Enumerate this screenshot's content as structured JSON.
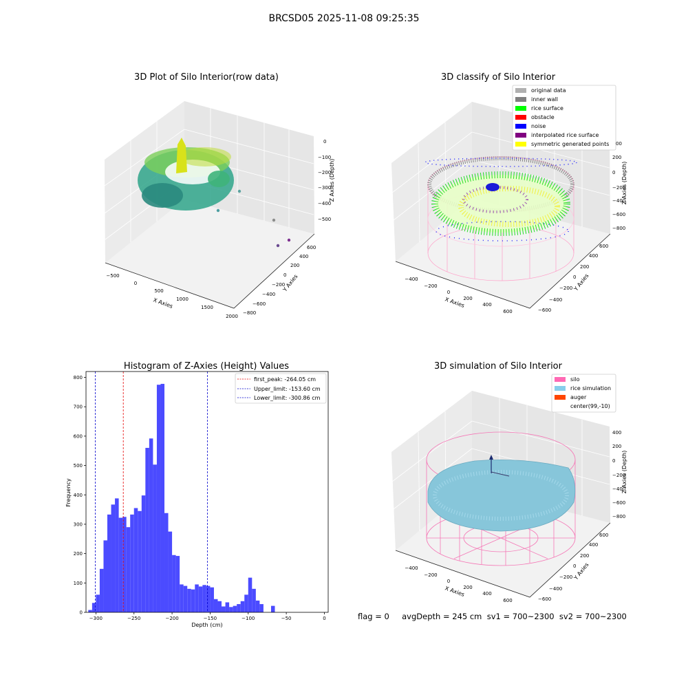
{
  "suptitle": "BRCSD05 2025-11-08 09:25:35",
  "status_line": "flag = 0     avgDepth = 245 cm  sv1 = 700~2300  sv2 = 700~2300",
  "chart_data": [
    {
      "type": "scatter",
      "title": "3D Plot of Silo Interior(row data)",
      "xlabel": "X Axies",
      "ylabel": "Y Axies",
      "zlabel": "Z Axies (Depth)",
      "x_ticks": [
        "−500",
        "0",
        "500",
        "1000",
        "1500",
        "2000"
      ],
      "y_ticks": [
        "−800",
        "−600",
        "−400",
        "−200",
        "0",
        "200",
        "400",
        "600"
      ],
      "z_ticks": [
        "0",
        "−100",
        "−200",
        "−300",
        "−400",
        "−500"
      ],
      "colormap": "viridis",
      "outlier_points": [
        {
          "color": "#5ba3a0"
        },
        {
          "color": "#4e9fa2"
        },
        {
          "color": "#8b8c8b"
        },
        {
          "color": "#6a4a90"
        },
        {
          "color": "#7c2f8f"
        }
      ]
    },
    {
      "type": "scatter",
      "title": "3D classify of Silo Interior",
      "xlabel": "X Axies",
      "ylabel": "Y Axies",
      "zlabel": "Z Axies (Depth)",
      "x_ticks": [
        "−400",
        "−200",
        "0",
        "200",
        "400",
        "600"
      ],
      "y_ticks": [
        "−600",
        "−400",
        "−200",
        "0",
        "200",
        "400",
        "600"
      ],
      "z_ticks": [
        "200",
        "0",
        "−200",
        "−400",
        "−600",
        "−800"
      ],
      "z_top_tick": "00",
      "legend": [
        {
          "label": "original data",
          "color": "#b0b0b0"
        },
        {
          "label": "inner wall",
          "color": "#808080"
        },
        {
          "label": "rice surface",
          "color": "#00ff00"
        },
        {
          "label": "obstacle",
          "color": "#ff0000"
        },
        {
          "label": "noise",
          "color": "#0000ff"
        },
        {
          "label": "interpolated rice surface",
          "color": "#800080"
        },
        {
          "label": "symmetric generated points",
          "color": "#ffff00"
        }
      ]
    },
    {
      "type": "bar",
      "title": "Histogram of Z-Axies (Height) Values",
      "xlabel": "Depth (cm)",
      "ylabel": "Frequency",
      "xlim": [
        -313,
        5
      ],
      "ylim": [
        0,
        820
      ],
      "x_ticks": [
        -300,
        -250,
        -200,
        -150,
        -100,
        -50,
        0
      ],
      "y_ticks": [
        0,
        100,
        200,
        300,
        400,
        500,
        600,
        700,
        800
      ],
      "bar_color": "#4b4bff",
      "bin_width": 5,
      "bins": [
        {
          "x": -310,
          "v": 8
        },
        {
          "x": -305,
          "v": 32
        },
        {
          "x": -300,
          "v": 60
        },
        {
          "x": -295,
          "v": 148
        },
        {
          "x": -290,
          "v": 245
        },
        {
          "x": -285,
          "v": 333
        },
        {
          "x": -280,
          "v": 367
        },
        {
          "x": -275,
          "v": 388
        },
        {
          "x": -270,
          "v": 322
        },
        {
          "x": -265,
          "v": 325
        },
        {
          "x": -260,
          "v": 290
        },
        {
          "x": -255,
          "v": 333
        },
        {
          "x": -250,
          "v": 355
        },
        {
          "x": -245,
          "v": 345
        },
        {
          "x": -240,
          "v": 398
        },
        {
          "x": -235,
          "v": 560
        },
        {
          "x": -230,
          "v": 592
        },
        {
          "x": -225,
          "v": 503
        },
        {
          "x": -220,
          "v": 775
        },
        {
          "x": -215,
          "v": 778
        },
        {
          "x": -210,
          "v": 338
        },
        {
          "x": -205,
          "v": 275
        },
        {
          "x": -200,
          "v": 195
        },
        {
          "x": -195,
          "v": 192
        },
        {
          "x": -190,
          "v": 95
        },
        {
          "x": -185,
          "v": 90
        },
        {
          "x": -180,
          "v": 80
        },
        {
          "x": -175,
          "v": 78
        },
        {
          "x": -170,
          "v": 95
        },
        {
          "x": -165,
          "v": 88
        },
        {
          "x": -160,
          "v": 93
        },
        {
          "x": -155,
          "v": 90
        },
        {
          "x": -150,
          "v": 85
        },
        {
          "x": -145,
          "v": 45
        },
        {
          "x": -140,
          "v": 38
        },
        {
          "x": -135,
          "v": 20
        },
        {
          "x": -130,
          "v": 34
        },
        {
          "x": -125,
          "v": 18
        },
        {
          "x": -120,
          "v": 22
        },
        {
          "x": -115,
          "v": 28
        },
        {
          "x": -110,
          "v": 38
        },
        {
          "x": -105,
          "v": 60
        },
        {
          "x": -100,
          "v": 118
        },
        {
          "x": -95,
          "v": 80
        },
        {
          "x": -90,
          "v": 40
        },
        {
          "x": -85,
          "v": 28
        },
        {
          "x": -80,
          "v": 0
        },
        {
          "x": -75,
          "v": 0
        },
        {
          "x": -70,
          "v": 22
        }
      ],
      "bins_note": "",
      "lines": [
        {
          "label": "first_peak: -264.05 cm",
          "x": -264.05,
          "color": "#e60000"
        },
        {
          "label": "Upper_limit: -153.60 cm",
          "x": -153.6,
          "color": "#0000cc"
        },
        {
          "label": "Lower_limit: -300.86 cm",
          "x": -300.86,
          "color": "#0000cc"
        }
      ]
    },
    {
      "type": "scatter",
      "title": "3D simulation of Silo Interior",
      "xlabel": "X Axies",
      "ylabel": "Y Axies",
      "zlabel": "Z Axies (Depth)",
      "x_ticks": [
        "−400",
        "−200",
        "0",
        "200",
        "400",
        "600"
      ],
      "y_ticks": [
        "−600",
        "−400",
        "−200",
        "0",
        "200",
        "400",
        "600"
      ],
      "z_ticks": [
        "400",
        "200",
        "0",
        "−200",
        "−400",
        "−600",
        "−800"
      ],
      "legend": [
        {
          "label": "silo",
          "color": "#ff69b4"
        },
        {
          "label": "rice simulation",
          "color": "#87ceeb"
        },
        {
          "label": "auger",
          "color": "#ff4500"
        },
        {
          "label": "center(99,-10)",
          "color": ""
        }
      ]
    }
  ]
}
